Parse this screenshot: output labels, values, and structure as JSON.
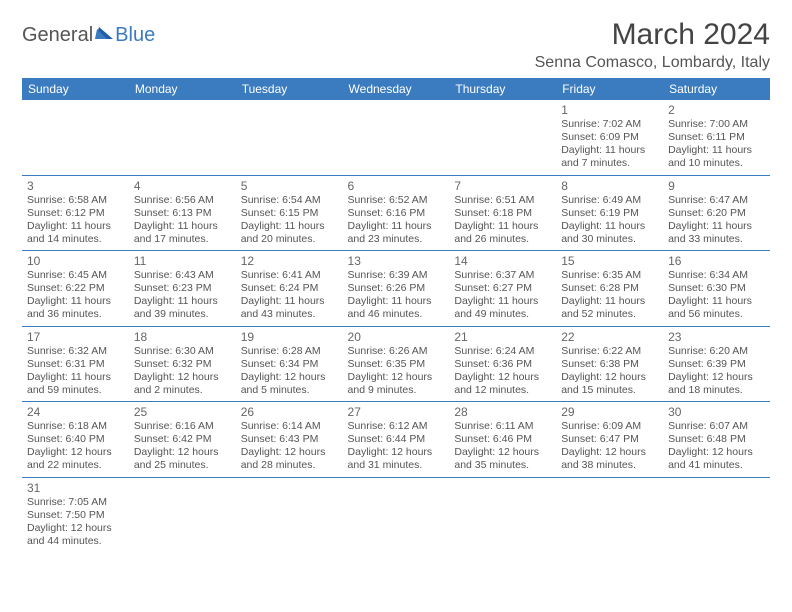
{
  "logo": {
    "text1": "General",
    "text2": "Blue"
  },
  "header": {
    "month_title": "March 2024",
    "location": "Senna Comasco, Lombardy, Italy"
  },
  "style": {
    "header_bg": "#3b7bbf",
    "header_fg": "#ffffff",
    "border_color": "#3b7bbf",
    "text_color": "#555555",
    "daynum_color": "#666666",
    "background": "#ffffff",
    "month_title_fontsize": 30,
    "location_fontsize": 16,
    "weekday_fontsize": 12,
    "daynum_fontsize": 12,
    "info_fontsize": 10.5
  },
  "weekdays": [
    "Sunday",
    "Monday",
    "Tuesday",
    "Wednesday",
    "Thursday",
    "Friday",
    "Saturday"
  ],
  "weeks": [
    [
      null,
      null,
      null,
      null,
      null,
      {
        "n": "1",
        "sr": "7:02 AM",
        "ss": "6:09 PM",
        "dl": "11 hours and 7 minutes."
      },
      {
        "n": "2",
        "sr": "7:00 AM",
        "ss": "6:11 PM",
        "dl": "11 hours and 10 minutes."
      }
    ],
    [
      {
        "n": "3",
        "sr": "6:58 AM",
        "ss": "6:12 PM",
        "dl": "11 hours and 14 minutes."
      },
      {
        "n": "4",
        "sr": "6:56 AM",
        "ss": "6:13 PM",
        "dl": "11 hours and 17 minutes."
      },
      {
        "n": "5",
        "sr": "6:54 AM",
        "ss": "6:15 PM",
        "dl": "11 hours and 20 minutes."
      },
      {
        "n": "6",
        "sr": "6:52 AM",
        "ss": "6:16 PM",
        "dl": "11 hours and 23 minutes."
      },
      {
        "n": "7",
        "sr": "6:51 AM",
        "ss": "6:18 PM",
        "dl": "11 hours and 26 minutes."
      },
      {
        "n": "8",
        "sr": "6:49 AM",
        "ss": "6:19 PM",
        "dl": "11 hours and 30 minutes."
      },
      {
        "n": "9",
        "sr": "6:47 AM",
        "ss": "6:20 PM",
        "dl": "11 hours and 33 minutes."
      }
    ],
    [
      {
        "n": "10",
        "sr": "6:45 AM",
        "ss": "6:22 PM",
        "dl": "11 hours and 36 minutes."
      },
      {
        "n": "11",
        "sr": "6:43 AM",
        "ss": "6:23 PM",
        "dl": "11 hours and 39 minutes."
      },
      {
        "n": "12",
        "sr": "6:41 AM",
        "ss": "6:24 PM",
        "dl": "11 hours and 43 minutes."
      },
      {
        "n": "13",
        "sr": "6:39 AM",
        "ss": "6:26 PM",
        "dl": "11 hours and 46 minutes."
      },
      {
        "n": "14",
        "sr": "6:37 AM",
        "ss": "6:27 PM",
        "dl": "11 hours and 49 minutes."
      },
      {
        "n": "15",
        "sr": "6:35 AM",
        "ss": "6:28 PM",
        "dl": "11 hours and 52 minutes."
      },
      {
        "n": "16",
        "sr": "6:34 AM",
        "ss": "6:30 PM",
        "dl": "11 hours and 56 minutes."
      }
    ],
    [
      {
        "n": "17",
        "sr": "6:32 AM",
        "ss": "6:31 PM",
        "dl": "11 hours and 59 minutes."
      },
      {
        "n": "18",
        "sr": "6:30 AM",
        "ss": "6:32 PM",
        "dl": "12 hours and 2 minutes."
      },
      {
        "n": "19",
        "sr": "6:28 AM",
        "ss": "6:34 PM",
        "dl": "12 hours and 5 minutes."
      },
      {
        "n": "20",
        "sr": "6:26 AM",
        "ss": "6:35 PM",
        "dl": "12 hours and 9 minutes."
      },
      {
        "n": "21",
        "sr": "6:24 AM",
        "ss": "6:36 PM",
        "dl": "12 hours and 12 minutes."
      },
      {
        "n": "22",
        "sr": "6:22 AM",
        "ss": "6:38 PM",
        "dl": "12 hours and 15 minutes."
      },
      {
        "n": "23",
        "sr": "6:20 AM",
        "ss": "6:39 PM",
        "dl": "12 hours and 18 minutes."
      }
    ],
    [
      {
        "n": "24",
        "sr": "6:18 AM",
        "ss": "6:40 PM",
        "dl": "12 hours and 22 minutes."
      },
      {
        "n": "25",
        "sr": "6:16 AM",
        "ss": "6:42 PM",
        "dl": "12 hours and 25 minutes."
      },
      {
        "n": "26",
        "sr": "6:14 AM",
        "ss": "6:43 PM",
        "dl": "12 hours and 28 minutes."
      },
      {
        "n": "27",
        "sr": "6:12 AM",
        "ss": "6:44 PM",
        "dl": "12 hours and 31 minutes."
      },
      {
        "n": "28",
        "sr": "6:11 AM",
        "ss": "6:46 PM",
        "dl": "12 hours and 35 minutes."
      },
      {
        "n": "29",
        "sr": "6:09 AM",
        "ss": "6:47 PM",
        "dl": "12 hours and 38 minutes."
      },
      {
        "n": "30",
        "sr": "6:07 AM",
        "ss": "6:48 PM",
        "dl": "12 hours and 41 minutes."
      }
    ],
    [
      {
        "n": "31",
        "sr": "7:05 AM",
        "ss": "7:50 PM",
        "dl": "12 hours and 44 minutes."
      },
      null,
      null,
      null,
      null,
      null,
      null
    ]
  ],
  "labels": {
    "sunrise": "Sunrise: ",
    "sunset": "Sunset: ",
    "daylight": "Daylight: "
  }
}
